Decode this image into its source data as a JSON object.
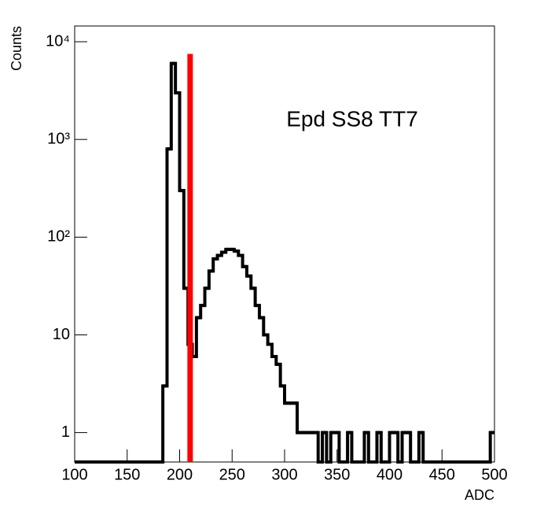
{
  "chart_data": {
    "type": "histogram",
    "x_label": "ADC",
    "y_label": "Counts",
    "annotation": "Epd SS8 TT7",
    "color": "#000000",
    "log_y": true,
    "bins": [
      100,
      104,
      108,
      112,
      116,
      120,
      124,
      128,
      132,
      136,
      140,
      144,
      148,
      152,
      156,
      160,
      164,
      168,
      172,
      176,
      180,
      184,
      188,
      192,
      196,
      200,
      204,
      208,
      212,
      216,
      220,
      224,
      228,
      232,
      236,
      240,
      244,
      248,
      252,
      256,
      260,
      264,
      268,
      272,
      276,
      280,
      284,
      288,
      292,
      296,
      300,
      304,
      308,
      312,
      316,
      320,
      324,
      328,
      332,
      336,
      340,
      344,
      348,
      352,
      356,
      360,
      364,
      368,
      372,
      376,
      380,
      384,
      388,
      392,
      396,
      400,
      404,
      408,
      412,
      416,
      420,
      424,
      428,
      432,
      436,
      440,
      444,
      448,
      452,
      456,
      460,
      464,
      468,
      472,
      476,
      480,
      484,
      488,
      492,
      496,
      500
    ],
    "values": [
      0,
      0,
      0,
      0,
      0,
      0,
      0,
      0,
      0,
      0,
      0,
      0,
      0,
      0,
      0,
      0,
      0,
      0,
      0,
      0,
      0,
      3,
      800,
      6000,
      3000,
      300,
      30,
      8,
      6,
      15,
      20,
      30,
      45,
      60,
      65,
      70,
      75,
      75,
      72,
      65,
      50,
      40,
      30,
      20,
      15,
      10,
      8,
      6,
      5,
      3,
      2,
      2,
      2,
      1,
      1,
      1,
      1,
      1,
      0,
      1,
      0,
      1,
      1,
      0,
      0,
      1,
      0,
      0,
      0,
      1,
      0,
      0,
      1,
      0,
      0,
      1,
      1,
      0,
      1,
      1,
      0,
      0,
      1,
      0,
      0,
      0,
      0,
      0,
      0,
      0,
      0,
      0,
      0,
      0,
      0,
      0,
      0,
      0,
      0,
      1
    ],
    "cut_line": {
      "x": 210,
      "y": 7500,
      "color": "#ff0000"
    },
    "xlim": [
      100,
      500
    ],
    "ylim": [
      0.5,
      14500
    ],
    "xticks": [
      100,
      150,
      200,
      250,
      300,
      350,
      400,
      450,
      500
    ],
    "yticks": [
      1,
      10,
      {
        "value": 100,
        "label": "10²"
      },
      {
        "value": 1000,
        "label": "10³"
      },
      {
        "value": 10000,
        "label": "10⁴"
      }
    ]
  }
}
